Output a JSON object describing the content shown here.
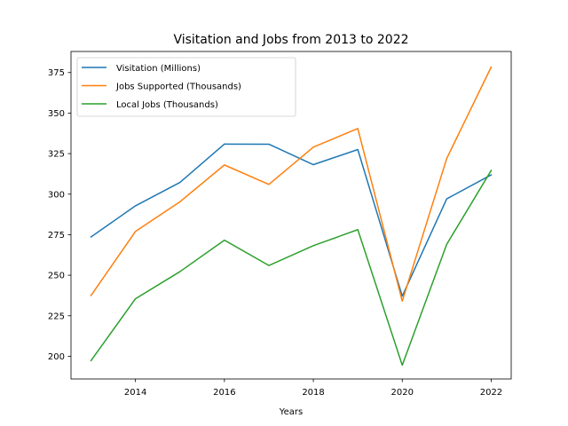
{
  "chart_data": {
    "type": "line",
    "title": "Visitation and Jobs from 2013 to 2022",
    "xlabel": "Years",
    "ylabel": "",
    "x": [
      2013,
      2014,
      2015,
      2016,
      2017,
      2018,
      2019,
      2020,
      2021,
      2022
    ],
    "xlim": [
      2012.55,
      2022.45
    ],
    "ylim": [
      186,
      388
    ],
    "x_ticks": [
      2014,
      2016,
      2018,
      2020,
      2022
    ],
    "y_ticks": [
      200,
      225,
      250,
      275,
      300,
      325,
      350,
      375
    ],
    "grid": false,
    "legend_position": "top-left",
    "series": [
      {
        "name": "Visitation (Millions)",
        "color": "#1f77b4",
        "values": [
          273.6,
          292.8,
          307.2,
          330.9,
          330.8,
          318.2,
          327.5,
          237.1,
          297.1,
          311.9
        ]
      },
      {
        "name": "Jobs Supported (Thousands)",
        "color": "#ff7f0e",
        "values": [
          237.5,
          277.0,
          295.3,
          318.0,
          306.0,
          329.0,
          340.5,
          234.0,
          322.0,
          378.4
        ]
      },
      {
        "name": "Local Jobs (Thousands)",
        "color": "#2ca02c",
        "values": [
          197.3,
          235.5,
          252.2,
          271.6,
          256.0,
          268.2,
          278.1,
          194.5,
          269.1,
          314.6
        ]
      }
    ]
  }
}
